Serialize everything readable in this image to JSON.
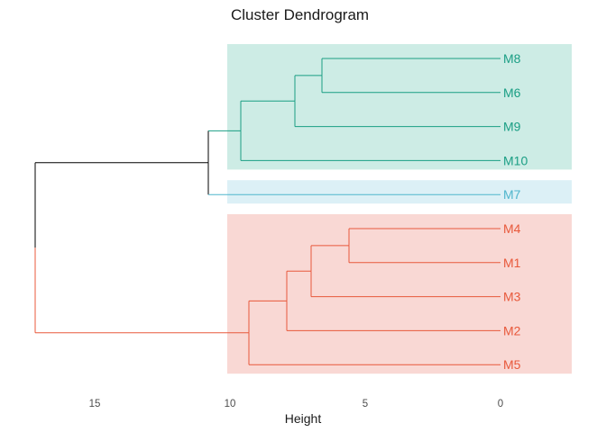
{
  "chart_data": {
    "type": "dendrogram",
    "title": "Cluster Dendrogram",
    "xlabel": "Height",
    "x_ticks": [
      15,
      10,
      5,
      0
    ],
    "xlim": [
      17.2,
      -2.6
    ],
    "orientation": "horizontal",
    "leaf_order": [
      "M8",
      "M6",
      "M9",
      "M10",
      "M7",
      "M4",
      "M1",
      "M3",
      "M2",
      "M5"
    ],
    "clusters": [
      {
        "leaves": [
          "M8",
          "M6",
          "M9",
          "M10"
        ],
        "color": "#1a9e84",
        "fill": "#cdece5"
      },
      {
        "leaves": [
          "M7"
        ],
        "color": "#4fb5cc",
        "fill": "#dcf0f6"
      },
      {
        "leaves": [
          "M4",
          "M1",
          "M3",
          "M2",
          "M5"
        ],
        "color": "#e8593b",
        "fill": "#f9d8d4"
      }
    ],
    "root_color": "#000000",
    "merges": [
      {
        "id": "a",
        "left": "M8",
        "right": "M6",
        "height": 6.6
      },
      {
        "id": "b",
        "left": "a",
        "right": "M9",
        "height": 7.6
      },
      {
        "id": "c",
        "left": "b",
        "right": "M10",
        "height": 9.6
      },
      {
        "id": "d",
        "left": "c",
        "right": "M7",
        "height": 10.8
      },
      {
        "id": "e",
        "left": "M4",
        "right": "M1",
        "height": 5.6
      },
      {
        "id": "f",
        "left": "e",
        "right": "M3",
        "height": 7.0
      },
      {
        "id": "g",
        "left": "f",
        "right": "M2",
        "height": 7.9
      },
      {
        "id": "h",
        "left": "g",
        "right": "M5",
        "height": 9.3
      },
      {
        "id": "root",
        "left": "d",
        "right": "h",
        "height": 17.2
      }
    ]
  }
}
